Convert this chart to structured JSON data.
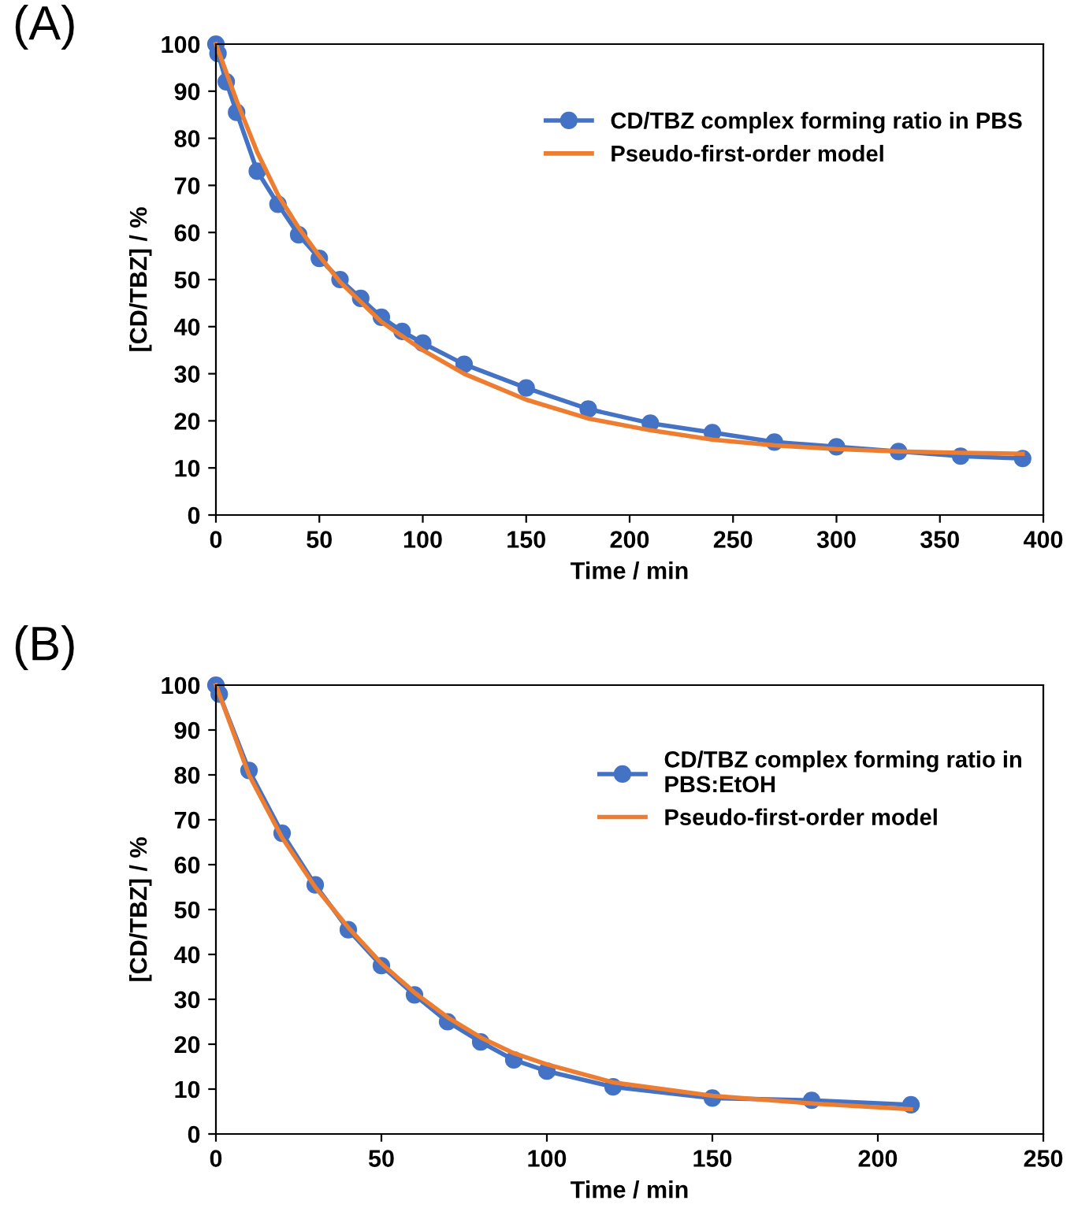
{
  "chart_data": [
    {
      "type": "line",
      "annotations": [
        "(A)"
      ],
      "xlabel": "Time / min",
      "ylabel": "[CD/TBZ] / %",
      "xlim": [
        0,
        400
      ],
      "ylim": [
        0,
        100
      ],
      "xticks": [
        0,
        50,
        100,
        150,
        200,
        250,
        300,
        350,
        400
      ],
      "yticks": [
        0,
        10,
        20,
        30,
        40,
        50,
        60,
        70,
        80,
        90,
        100
      ],
      "grid": false,
      "legend": "top right",
      "series": [
        {
          "name": "CD/TBZ complex forming ratio in PBS",
          "color": "#4472c4",
          "marker": "circle",
          "x": [
            0,
            1,
            5,
            10,
            20,
            30,
            40,
            50,
            60,
            70,
            80,
            90,
            100,
            120,
            150,
            180,
            210,
            240,
            270,
            300,
            330,
            360,
            390
          ],
          "values": [
            100,
            98,
            92,
            85.5,
            73,
            66,
            59.5,
            54.5,
            50,
            46,
            42,
            39,
            36.5,
            32,
            27,
            22.5,
            19.5,
            17.5,
            15.5,
            14.5,
            13.5,
            12.5,
            12
          ]
        },
        {
          "name": "Pseudo-first-order model",
          "color": "#ed7d31",
          "marker": "none",
          "x": [
            0,
            10,
            20,
            30,
            40,
            50,
            60,
            80,
            100,
            120,
            150,
            180,
            210,
            240,
            270,
            300,
            330,
            360,
            390
          ],
          "values": [
            100,
            88,
            77,
            68,
            61,
            55,
            49.5,
            41,
            35,
            30,
            24.5,
            20.5,
            18,
            16,
            14.8,
            14,
            13.5,
            13.2,
            13
          ]
        }
      ]
    },
    {
      "type": "line",
      "annotations": [
        "(B)"
      ],
      "xlabel": "Time / min",
      "ylabel": "[CD/TBZ] / %",
      "xlim": [
        0,
        250
      ],
      "ylim": [
        0,
        100
      ],
      "xticks": [
        0,
        50,
        100,
        150,
        200,
        250
      ],
      "yticks": [
        0,
        10,
        20,
        30,
        40,
        50,
        60,
        70,
        80,
        90,
        100
      ],
      "grid": false,
      "legend": "top right",
      "series": [
        {
          "name": "CD/TBZ complex forming ratio in\nPBS:EtOH",
          "color": "#4472c4",
          "marker": "circle",
          "x": [
            0,
            1,
            10,
            20,
            30,
            40,
            50,
            60,
            70,
            80,
            90,
            100,
            120,
            150,
            180,
            210
          ],
          "values": [
            100,
            98,
            81,
            67,
            55.5,
            45.5,
            37.5,
            31,
            25,
            20.5,
            16.5,
            14,
            10.5,
            8,
            7.5,
            6.5
          ]
        },
        {
          "name": "Pseudo-first-order model",
          "color": "#ed7d31",
          "marker": "none",
          "x": [
            0,
            10,
            20,
            30,
            40,
            50,
            60,
            70,
            80,
            90,
            100,
            120,
            150,
            180,
            210
          ],
          "values": [
            100,
            80,
            66,
            55,
            46,
            38,
            31.5,
            26,
            21.5,
            18,
            15.5,
            11.5,
            8.5,
            6.8,
            5.5
          ]
        }
      ]
    }
  ]
}
